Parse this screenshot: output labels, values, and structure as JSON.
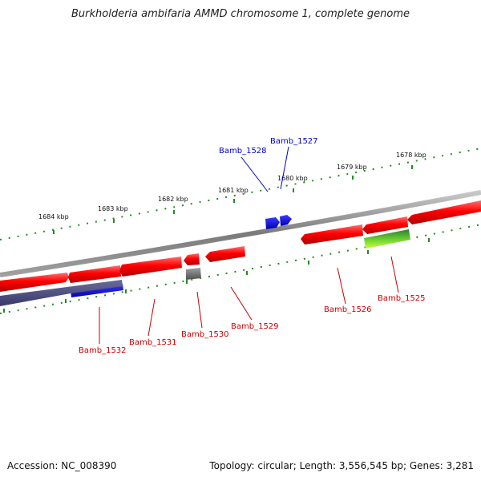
{
  "title": "Burkholderia ambifaria AMMD chromosome 1, complete genome",
  "footer": {
    "accession": "Accession: NC_008390",
    "summary": "Topology: circular; Length: 3,556,545 bp; Genes: 3,281"
  },
  "colors": {
    "forward": "#ff0000",
    "reverse": "#ff0000",
    "label_red": "#cc0000",
    "label_blue": "#0000cc",
    "backbone": "#808080",
    "tick": "#228b22"
  },
  "scale": {
    "unit": "kbp",
    "ticks": [
      {
        "label": "1684 kbp"
      },
      {
        "label": "1683 kbp"
      },
      {
        "label": "1682 kbp"
      },
      {
        "label": "1681 kbp"
      },
      {
        "label": "1680 kbp"
      },
      {
        "label": "1679 kbp"
      },
      {
        "label": "1678 kbp"
      }
    ]
  },
  "genes": [
    {
      "id": "Bamb_1532",
      "label": "Bamb_1532",
      "color": "red"
    },
    {
      "id": "Bamb_1531",
      "label": "Bamb_1531",
      "color": "red"
    },
    {
      "id": "Bamb_1530",
      "label": "Bamb_1530",
      "color": "red"
    },
    {
      "id": "Bamb_1529",
      "label": "Bamb_1529",
      "color": "red"
    },
    {
      "id": "Bamb_1528",
      "label": "Bamb_1528",
      "color": "blue"
    },
    {
      "id": "Bamb_1527",
      "label": "Bamb_1527",
      "color": "blue"
    },
    {
      "id": "Bamb_1526",
      "label": "Bamb_1526",
      "color": "red"
    },
    {
      "id": "Bamb_1525",
      "label": "Bamb_1525",
      "color": "red"
    }
  ]
}
